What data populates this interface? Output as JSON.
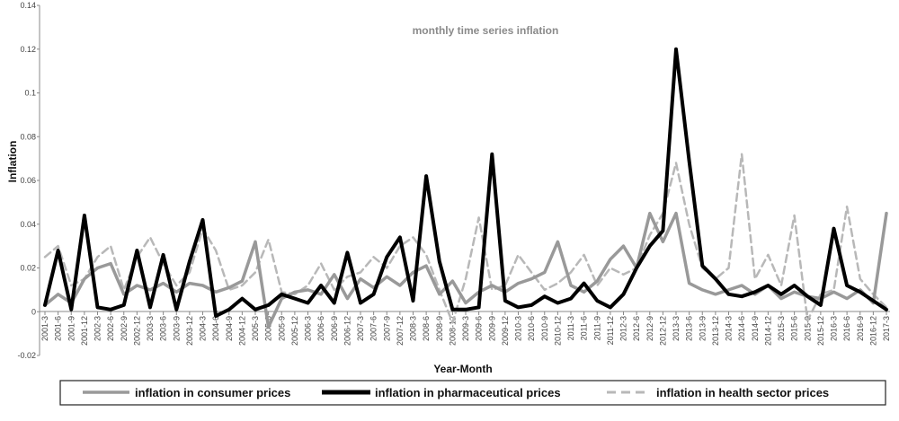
{
  "chart_data": {
    "type": "line",
    "title": "monthly time series inflation",
    "xlabel": "Year-Month",
    "ylabel": "Inflation",
    "ylim": [
      -0.02,
      0.14
    ],
    "yticks": [
      "-0.02",
      "0",
      "0.02",
      "0.04",
      "0.06",
      "0.08",
      "0.1",
      "0.12",
      "0.14"
    ],
    "grid": false,
    "legend_position": "bottom",
    "x": [
      "2001-3",
      "2001-6",
      "2001-9",
      "2001-12",
      "2002-3",
      "2002-6",
      "2002-9",
      "2002-12",
      "2003-3",
      "2003-6",
      "2003-9",
      "2003-12",
      "2004-3",
      "2004-6",
      "2004-9",
      "2004-12",
      "2005-3",
      "2005-6",
      "2005-9",
      "2005-12",
      "2006-3",
      "2006-6",
      "2006-9",
      "2006-12",
      "2007-3",
      "2007-6",
      "2007-9",
      "2007-12",
      "2008-3",
      "2008-6",
      "2008-9",
      "2008-12",
      "2009-3",
      "2009-6",
      "2009-9",
      "2009-12",
      "2010-3",
      "2010-6",
      "2010-9",
      "2010-12",
      "2011-3",
      "2011-6",
      "2011-9",
      "2011-12",
      "2012-3",
      "2012-6",
      "2012-9",
      "2012-12",
      "2013-3",
      "2013-6",
      "2013-9",
      "2013-12",
      "2014-3",
      "2014-6",
      "2014-9",
      "2014-12",
      "2015-3",
      "2015-6",
      "2015-9",
      "2015-12",
      "2016-3",
      "2016-6",
      "2016-9",
      "2016-12",
      "2017-3"
    ],
    "series": [
      {
        "name": "inflation in consumer prices",
        "color": "#999999",
        "dash": "solid",
        "values": [
          0.003,
          0.008,
          0.004,
          0.015,
          0.02,
          0.022,
          0.008,
          0.012,
          0.01,
          0.013,
          0.009,
          0.013,
          0.012,
          0.009,
          0.011,
          0.014,
          0.032,
          -0.007,
          0.006,
          0.009,
          0.01,
          0.008,
          0.017,
          0.006,
          0.015,
          0.011,
          0.016,
          0.012,
          0.018,
          0.021,
          0.008,
          0.014,
          0.004,
          0.009,
          0.012,
          0.009,
          0.013,
          0.015,
          0.018,
          0.032,
          0.012,
          0.009,
          0.014,
          0.024,
          0.03,
          0.02,
          0.045,
          0.032,
          0.045,
          0.013,
          0.01,
          0.008,
          0.01,
          0.012,
          0.008,
          0.012,
          0.006,
          0.009,
          0.007,
          0.006,
          0.009,
          0.006,
          0.01,
          0.004,
          0.045
        ]
      },
      {
        "name": "inflation in pharmaceutical prices",
        "color": "#000000",
        "dash": "solid",
        "values": [
          0.003,
          0.028,
          0.001,
          0.044,
          0.002,
          0.001,
          0.003,
          0.028,
          0.002,
          0.026,
          0.001,
          0.023,
          0.042,
          -0.002,
          0.001,
          0.006,
          0.001,
          0.003,
          0.008,
          0.006,
          0.004,
          0.012,
          0.004,
          0.027,
          0.004,
          0.008,
          0.025,
          0.034,
          0.005,
          0.062,
          0.023,
          0.001,
          0.001,
          0.002,
          0.072,
          0.005,
          0.002,
          0.003,
          0.007,
          0.004,
          0.006,
          0.013,
          0.005,
          0.002,
          0.008,
          0.02,
          0.03,
          0.037,
          0.12,
          0.069,
          0.021,
          0.015,
          0.008,
          0.007,
          0.009,
          0.012,
          0.008,
          0.012,
          0.007,
          0.003,
          0.038,
          0.012,
          0.009,
          0.005,
          0.001
        ]
      },
      {
        "name": "inflation in health sector prices",
        "color": "#b8b8b8",
        "dash": "dashed",
        "values": [
          0.025,
          0.03,
          0.012,
          0.015,
          0.025,
          0.03,
          0.01,
          0.025,
          0.034,
          0.022,
          0.012,
          0.018,
          0.038,
          0.028,
          0.01,
          0.012,
          0.018,
          0.033,
          0.009,
          0.008,
          0.012,
          0.022,
          0.01,
          0.016,
          0.018,
          0.025,
          0.02,
          0.03,
          0.034,
          0.026,
          0.01,
          -0.005,
          0.015,
          0.043,
          0.01,
          0.012,
          0.026,
          0.018,
          0.01,
          0.013,
          0.018,
          0.026,
          0.012,
          0.02,
          0.017,
          0.02,
          0.035,
          0.045,
          0.068,
          0.04,
          0.02,
          0.015,
          0.02,
          0.072,
          0.015,
          0.026,
          0.012,
          0.044,
          -0.004,
          0.008,
          0.01,
          0.048,
          0.015,
          0.008,
          0.002
        ]
      }
    ]
  }
}
